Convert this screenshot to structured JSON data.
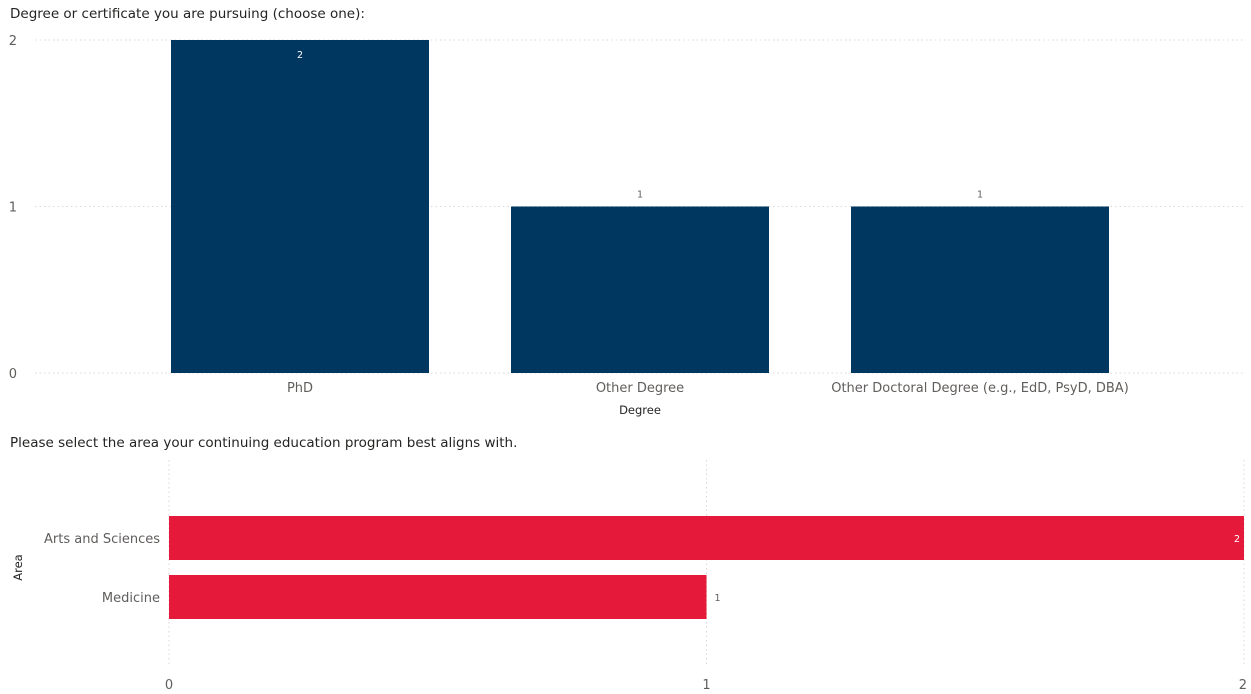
{
  "chart_data": [
    {
      "type": "bar",
      "orientation": "vertical",
      "title": "Degree or certificate you are pursuing (choose one):",
      "xlabel": "Degree",
      "ylabel": "",
      "categories": [
        "PhD",
        "Other Degree",
        "Other Doctoral Degree (e.g., EdD, PsyD, DBA)"
      ],
      "values": [
        2,
        1,
        1
      ],
      "data_labels": [
        "2",
        "1",
        "1"
      ],
      "y_ticks": [
        "0",
        "1",
        "2"
      ],
      "ylim": [
        0,
        2
      ],
      "grid": true,
      "legend": "none",
      "bar_color": "#003761",
      "label_inside_color": "#ffffff",
      "label_outside_color": "#605e5c"
    },
    {
      "type": "bar",
      "orientation": "horizontal",
      "title": "Please select the area your continuing education program best aligns with.",
      "xlabel": "",
      "ylabel": "Area",
      "categories": [
        "Arts and Sciences",
        "Medicine"
      ],
      "values": [
        2,
        1
      ],
      "data_labels": [
        "2",
        "1"
      ],
      "x_ticks": [
        "0",
        "1",
        "2"
      ],
      "xlim": [
        0,
        2
      ],
      "grid": true,
      "legend": "none",
      "bar_color": "#e5193a",
      "label_inside_color": "#ffffff",
      "label_outside_color": "#605e5c"
    }
  ]
}
